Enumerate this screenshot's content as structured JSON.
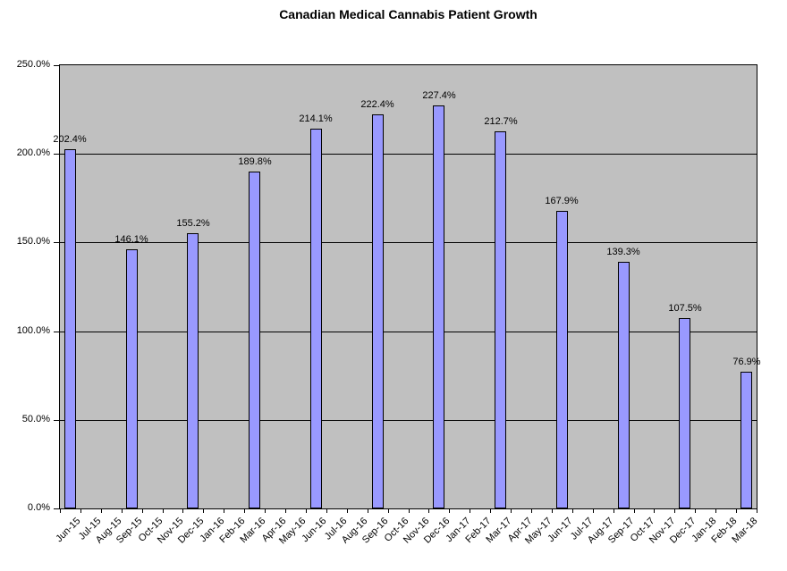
{
  "chart_data": {
    "type": "bar",
    "title": "Canadian Medical Cannabis Patient Growth",
    "categories": [
      "Jun-15",
      "Jul-15",
      "Aug-15",
      "Sep-15",
      "Oct-15",
      "Nov-15",
      "Dec-15",
      "Jan-16",
      "Feb-16",
      "Mar-16",
      "Apr-16",
      "May-16",
      "Jun-16",
      "Jul-16",
      "Aug-16",
      "Sep-16",
      "Oct-16",
      "Nov-16",
      "Dec-16",
      "Jan-17",
      "Feb-17",
      "Mar-17",
      "Apr-17",
      "May-17",
      "Jun-17",
      "Jul-17",
      "Aug-17",
      "Sep-17",
      "Oct-17",
      "Nov-17",
      "Dec-17",
      "Jan-18",
      "Feb-18",
      "Mar-18"
    ],
    "values": [
      202.4,
      null,
      null,
      146.1,
      null,
      null,
      155.2,
      null,
      null,
      189.8,
      null,
      null,
      214.1,
      null,
      null,
      222.4,
      null,
      null,
      227.4,
      null,
      null,
      212.7,
      null,
      null,
      167.9,
      null,
      null,
      139.3,
      null,
      null,
      107.5,
      null,
      null,
      76.9
    ],
    "value_labels": [
      "202.4%",
      "146.1%",
      "155.2%",
      "189.8%",
      "214.1%",
      "222.4%",
      "227.4%",
      "212.7%",
      "167.9%",
      "139.3%",
      "107.5%",
      "76.9%"
    ],
    "ytick_labels": [
      "0.0%",
      "50.0%",
      "100.0%",
      "150.0%",
      "200.0%",
      "250.0%"
    ],
    "ylim": [
      0,
      250
    ],
    "ytick_step": 50,
    "xlabel": "",
    "ylabel": "",
    "grid": true,
    "legend": "none",
    "xlabel_rotation_deg": 45,
    "colors": {
      "bar_fill": "#9999FF",
      "bar_border": "#000000",
      "plot_background": "#C0C0C0",
      "gridline": "#000000",
      "axis": "#000000",
      "text": "#000000",
      "page_background": "#FFFFFF"
    }
  }
}
